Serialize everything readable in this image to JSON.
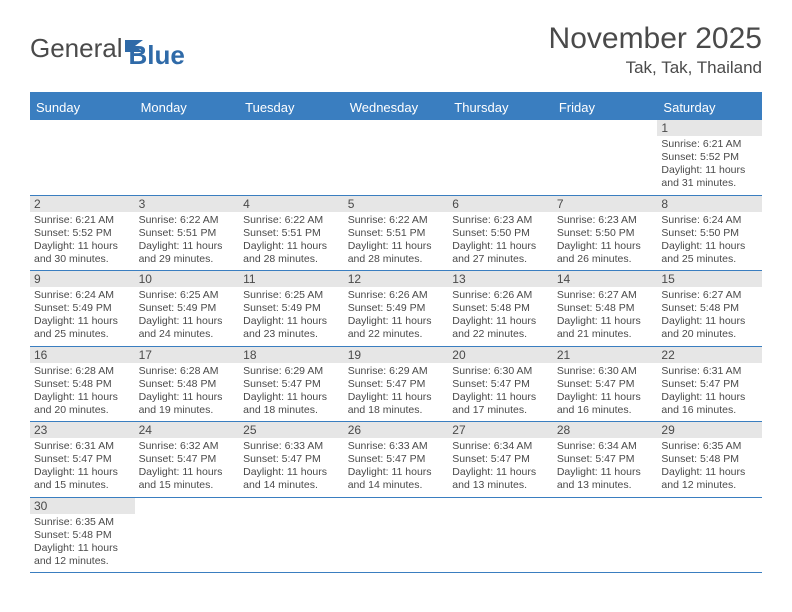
{
  "logo": {
    "text1": "General",
    "text2": "Blue"
  },
  "title": "November 2025",
  "location": "Tak, Tak, Thailand",
  "colors": {
    "header_blue": "#3a7ec0",
    "text": "#4a4a4a",
    "day_bar": "#e6e6e6",
    "white": "#ffffff"
  },
  "weekdays": [
    "Sunday",
    "Monday",
    "Tuesday",
    "Wednesday",
    "Thursday",
    "Friday",
    "Saturday"
  ],
  "weeks": [
    [
      null,
      null,
      null,
      null,
      null,
      null,
      {
        "n": "1",
        "sr": "6:21 AM",
        "ss": "5:52 PM",
        "dl": "11 hours and 31 minutes."
      }
    ],
    [
      {
        "n": "2",
        "sr": "6:21 AM",
        "ss": "5:52 PM",
        "dl": "11 hours and 30 minutes."
      },
      {
        "n": "3",
        "sr": "6:22 AM",
        "ss": "5:51 PM",
        "dl": "11 hours and 29 minutes."
      },
      {
        "n": "4",
        "sr": "6:22 AM",
        "ss": "5:51 PM",
        "dl": "11 hours and 28 minutes."
      },
      {
        "n": "5",
        "sr": "6:22 AM",
        "ss": "5:51 PM",
        "dl": "11 hours and 28 minutes."
      },
      {
        "n": "6",
        "sr": "6:23 AM",
        "ss": "5:50 PM",
        "dl": "11 hours and 27 minutes."
      },
      {
        "n": "7",
        "sr": "6:23 AM",
        "ss": "5:50 PM",
        "dl": "11 hours and 26 minutes."
      },
      {
        "n": "8",
        "sr": "6:24 AM",
        "ss": "5:50 PM",
        "dl": "11 hours and 25 minutes."
      }
    ],
    [
      {
        "n": "9",
        "sr": "6:24 AM",
        "ss": "5:49 PM",
        "dl": "11 hours and 25 minutes."
      },
      {
        "n": "10",
        "sr": "6:25 AM",
        "ss": "5:49 PM",
        "dl": "11 hours and 24 minutes."
      },
      {
        "n": "11",
        "sr": "6:25 AM",
        "ss": "5:49 PM",
        "dl": "11 hours and 23 minutes."
      },
      {
        "n": "12",
        "sr": "6:26 AM",
        "ss": "5:49 PM",
        "dl": "11 hours and 22 minutes."
      },
      {
        "n": "13",
        "sr": "6:26 AM",
        "ss": "5:48 PM",
        "dl": "11 hours and 22 minutes."
      },
      {
        "n": "14",
        "sr": "6:27 AM",
        "ss": "5:48 PM",
        "dl": "11 hours and 21 minutes."
      },
      {
        "n": "15",
        "sr": "6:27 AM",
        "ss": "5:48 PM",
        "dl": "11 hours and 20 minutes."
      }
    ],
    [
      {
        "n": "16",
        "sr": "6:28 AM",
        "ss": "5:48 PM",
        "dl": "11 hours and 20 minutes."
      },
      {
        "n": "17",
        "sr": "6:28 AM",
        "ss": "5:48 PM",
        "dl": "11 hours and 19 minutes."
      },
      {
        "n": "18",
        "sr": "6:29 AM",
        "ss": "5:47 PM",
        "dl": "11 hours and 18 minutes."
      },
      {
        "n": "19",
        "sr": "6:29 AM",
        "ss": "5:47 PM",
        "dl": "11 hours and 18 minutes."
      },
      {
        "n": "20",
        "sr": "6:30 AM",
        "ss": "5:47 PM",
        "dl": "11 hours and 17 minutes."
      },
      {
        "n": "21",
        "sr": "6:30 AM",
        "ss": "5:47 PM",
        "dl": "11 hours and 16 minutes."
      },
      {
        "n": "22",
        "sr": "6:31 AM",
        "ss": "5:47 PM",
        "dl": "11 hours and 16 minutes."
      }
    ],
    [
      {
        "n": "23",
        "sr": "6:31 AM",
        "ss": "5:47 PM",
        "dl": "11 hours and 15 minutes."
      },
      {
        "n": "24",
        "sr": "6:32 AM",
        "ss": "5:47 PM",
        "dl": "11 hours and 15 minutes."
      },
      {
        "n": "25",
        "sr": "6:33 AM",
        "ss": "5:47 PM",
        "dl": "11 hours and 14 minutes."
      },
      {
        "n": "26",
        "sr": "6:33 AM",
        "ss": "5:47 PM",
        "dl": "11 hours and 14 minutes."
      },
      {
        "n": "27",
        "sr": "6:34 AM",
        "ss": "5:47 PM",
        "dl": "11 hours and 13 minutes."
      },
      {
        "n": "28",
        "sr": "6:34 AM",
        "ss": "5:47 PM",
        "dl": "11 hours and 13 minutes."
      },
      {
        "n": "29",
        "sr": "6:35 AM",
        "ss": "5:48 PM",
        "dl": "11 hours and 12 minutes."
      }
    ],
    [
      {
        "n": "30",
        "sr": "6:35 AM",
        "ss": "5:48 PM",
        "dl": "11 hours and 12 minutes."
      },
      null,
      null,
      null,
      null,
      null,
      null
    ]
  ],
  "labels": {
    "sunrise": "Sunrise:",
    "sunset": "Sunset:",
    "daylight": "Daylight:"
  }
}
